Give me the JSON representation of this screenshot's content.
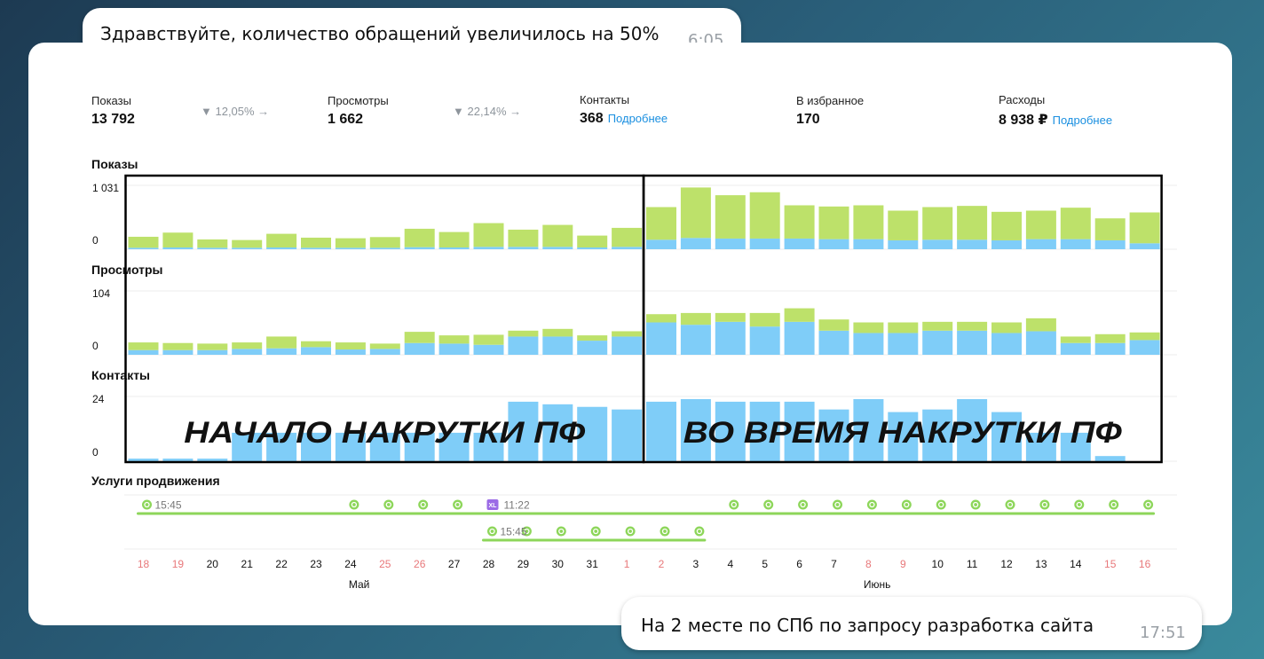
{
  "chat": {
    "top": {
      "text": "Здравствуйте, количество обращений увеличилось на 50%",
      "time": "6:05"
    },
    "bottom": {
      "text": "На 2 месте по СПб по запросу разработка сайта",
      "time": "17:51"
    }
  },
  "stats": [
    {
      "label": "Показы",
      "value": "13 792",
      "delta": "▼ 12,05% →"
    },
    {
      "label": "Просмотры",
      "value": "1 662",
      "delta": "▼ 22,14% →"
    },
    {
      "label": "Контакты",
      "value": "368",
      "link": "Подробнее"
    },
    {
      "label": "В избранное",
      "value": "170"
    },
    {
      "label": "Расходы",
      "value": "8 938 ₽",
      "link": "Подробнее"
    }
  ],
  "colors": {
    "green": "#bde16a",
    "blue": "#7fcdf8",
    "green_line": "#8dd65a",
    "xl_badge": "#9b6be6",
    "weekend": "#e8787a",
    "text": "#111111",
    "grid": "#ececec"
  },
  "chart_data": {
    "type": "bar",
    "stacked": true,
    "categories": [
      "18",
      "19",
      "20",
      "21",
      "22",
      "23",
      "24",
      "25",
      "26",
      "27",
      "28",
      "29",
      "30",
      "31",
      "1",
      "2",
      "3",
      "4",
      "5",
      "6",
      "7",
      "8",
      "9",
      "10",
      "11",
      "12",
      "13",
      "14",
      "15",
      "16"
    ],
    "weekend_days": [
      "18",
      "19",
      "25",
      "26",
      "1",
      "2",
      "8",
      "9",
      "15",
      "16"
    ],
    "month_labels": [
      {
        "text": "Май",
        "at_index": 6.25
      },
      {
        "text": "Июнь",
        "at_index": 21.25
      }
    ],
    "panels": [
      {
        "title": "Показы",
        "ymax_label": "1 031",
        "ymin_label": "0",
        "ymax": 1031,
        "series": [
          {
            "values": [
              25,
              30,
              25,
              25,
              30,
              25,
              25,
              25,
              35,
              30,
              40,
              40,
              40,
              30,
              40,
              160,
              190,
              180,
              180,
              180,
              170,
              170,
              150,
              160,
              160,
              150,
              170,
              170,
              150,
              100
            ]
          },
          {
            "values": [
              185,
              250,
              140,
              130,
              230,
              170,
              160,
              180,
              310,
              260,
              400,
              290,
              370,
              200,
              320,
              550,
              850,
              730,
              780,
              560,
              550,
              570,
              500,
              550,
              570,
              480,
              480,
              530,
              370,
              520
            ]
          }
        ]
      },
      {
        "title": "Просмотры",
        "ymax_label": "104",
        "ymin_label": "0",
        "ymax": 104,
        "series": [
          {
            "values": [
              8,
              8,
              8,
              10,
              11,
              13,
              9,
              10,
              20,
              19,
              17,
              31,
              31,
              24,
              31,
              55,
              51,
              56,
              48,
              56,
              41,
              37,
              37,
              41,
              41,
              37,
              40,
              20,
              20,
              25
            ]
          },
          {
            "values": [
              13,
              12,
              11,
              11,
              20,
              10,
              12,
              9,
              19,
              14,
              17,
              10,
              13,
              9,
              9,
              14,
              20,
              15,
              23,
              23,
              19,
              18,
              18,
              15,
              15,
              18,
              22,
              11,
              15,
              13
            ]
          }
        ]
      },
      {
        "title": "Контакты",
        "ymax_label": "24",
        "ymin_label": "0",
        "ymax": 24,
        "series": [
          {
            "values": [
              1,
              1,
              1,
              11,
              11,
              11,
              11,
              11,
              11,
              11,
              11,
              23,
              22,
              21,
              20,
              23,
              24,
              23,
              23,
              23,
              20,
              24,
              19,
              20,
              24,
              19,
              11,
              11,
              2,
              0
            ]
          }
        ]
      }
    ],
    "promotions": {
      "title": "Услуги продвижения",
      "rows": [
        {
          "start": 0,
          "end": 29,
          "label_time": "15:45",
          "icon_days": [
            0,
            6,
            7,
            8,
            9,
            17,
            18,
            19,
            20,
            21,
            22,
            23,
            24,
            25,
            26,
            27,
            28,
            29
          ],
          "xl_day": 10,
          "xl_label": "XL",
          "xl_time": "11:22"
        },
        {
          "start": 10,
          "end": 16,
          "label_time": "15:45",
          "icon_days": [
            10,
            11,
            12,
            13,
            14,
            15,
            16
          ]
        }
      ]
    },
    "annotations": [
      {
        "text": "НАЧАЛО НАКРУТКИ ПФ",
        "from_index": 0,
        "to_index": 14
      },
      {
        "text": "ВО ВРЕМЯ НАКРУТКИ ПФ",
        "from_index": 15,
        "to_index": 29
      }
    ]
  }
}
